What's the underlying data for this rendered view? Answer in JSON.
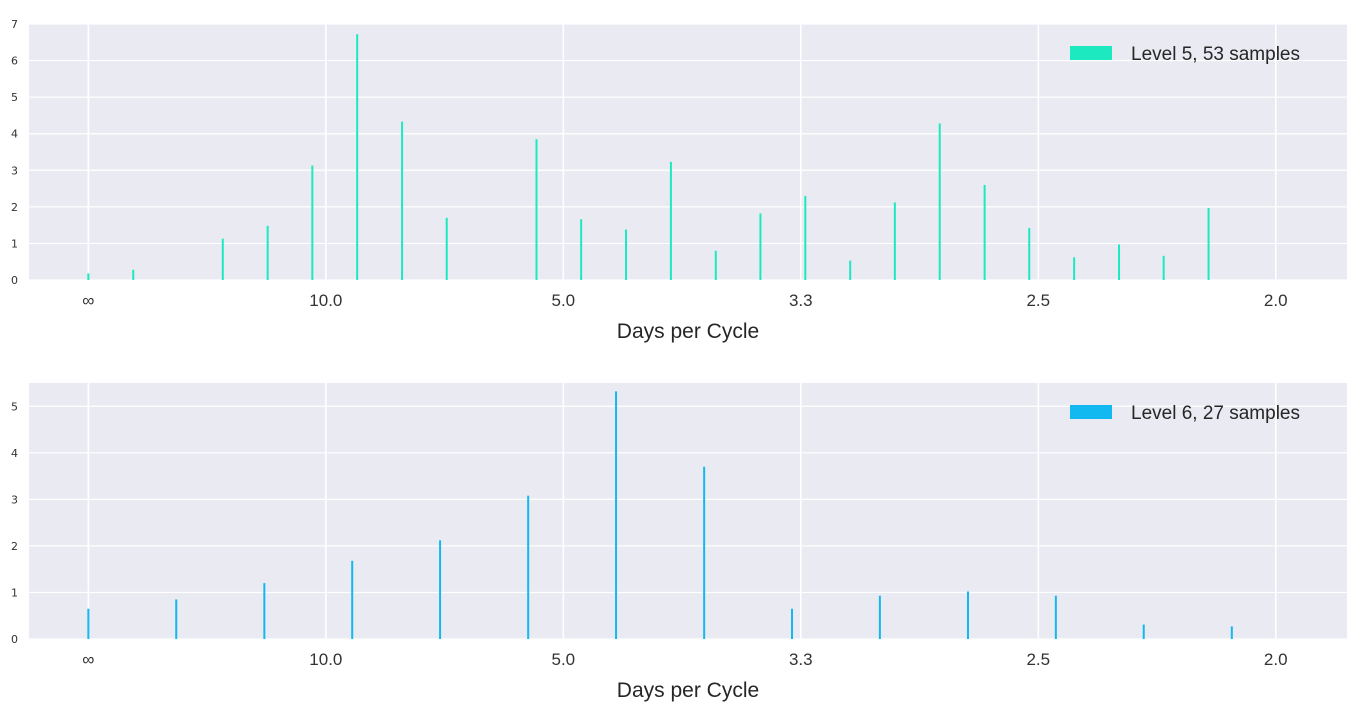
{
  "chart_data": [
    {
      "type": "bar",
      "xlabel": "Days per Cycle",
      "ylabel": "",
      "x_tick_labels": [
        "∞",
        "10.0",
        "5.0",
        "3.3",
        "2.5",
        "2.0"
      ],
      "x_ticks_cycles_per_day": [
        0,
        0.1,
        0.2,
        0.3,
        0.4,
        0.5
      ],
      "xlim": [
        -0.025,
        0.53
      ],
      "ylim": [
        0,
        7
      ],
      "y_ticks": [
        0,
        1,
        2,
        3,
        4,
        5,
        6,
        7
      ],
      "grid": true,
      "legend_position": "top-right",
      "color": "#1de9c0",
      "series": [
        {
          "name": "Level 5, 53 samples",
          "x_cycles_per_day": [
            0,
            0.0189,
            0.0566,
            0.0755,
            0.0943,
            0.1132,
            0.1321,
            0.1509,
            0.1887,
            0.2075,
            0.2264,
            0.2453,
            0.2642,
            0.283,
            0.3019,
            0.3208,
            0.3396,
            0.3585,
            0.3774,
            0.3962,
            0.4151,
            0.434,
            0.4528,
            0.4717,
            0.4906
          ],
          "values": [
            0.18,
            0.28,
            1.13,
            1.48,
            3.13,
            6.72,
            4.33,
            1.7,
            3.85,
            1.66,
            1.38,
            3.23,
            0.8,
            1.82,
            2.3,
            0.53,
            2.12,
            4.28,
            2.6,
            1.42,
            0.62,
            0.97,
            0.66,
            1.97,
            0
          ]
        }
      ]
    },
    {
      "type": "bar",
      "xlabel": "Days per Cycle",
      "ylabel": "",
      "x_tick_labels": [
        "∞",
        "10.0",
        "5.0",
        "3.3",
        "2.5",
        "2.0"
      ],
      "x_ticks_cycles_per_day": [
        0,
        0.1,
        0.2,
        0.3,
        0.4,
        0.5
      ],
      "xlim": [
        -0.025,
        0.53
      ],
      "ylim": [
        0,
        5.5
      ],
      "y_ticks": [
        0,
        1,
        2,
        3,
        4,
        5
      ],
      "grid": true,
      "legend_position": "top-right",
      "color": "#12b8f0",
      "series": [
        {
          "name": "Level 6, 27 samples",
          "x_cycles_per_day": [
            0,
            0.037,
            0.0741,
            0.1111,
            0.1481,
            0.1852,
            0.2222,
            0.2593,
            0.2963,
            0.3333,
            0.3704,
            0.4074,
            0.4444,
            0.4815
          ],
          "values": [
            0.65,
            0.85,
            1.2,
            1.68,
            2.12,
            3.08,
            5.32,
            3.7,
            0.65,
            0.93,
            1.02,
            0.93,
            0.31,
            0.27
          ]
        }
      ]
    }
  ]
}
